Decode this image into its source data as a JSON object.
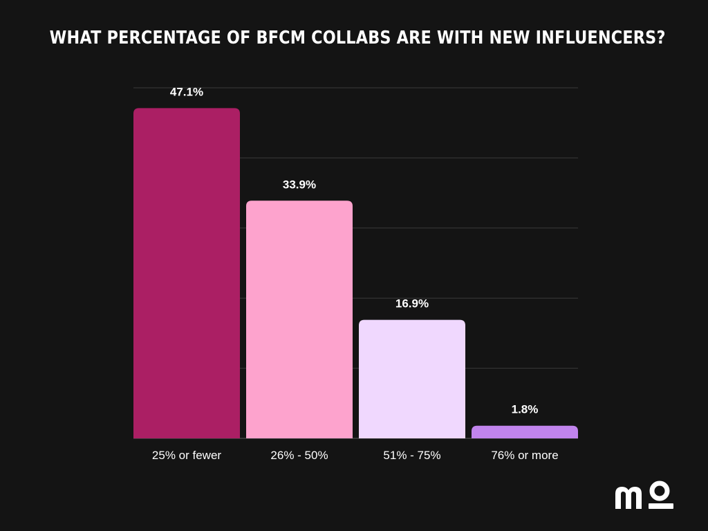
{
  "chart_data": {
    "type": "bar",
    "title": "WHAT PERCENTAGE OF BFCM COLLABS ARE WITH NEW INFLUENCERS?",
    "categories": [
      "25% or fewer",
      "26% - 50%",
      "51% - 75%",
      "76% or more"
    ],
    "values": [
      47.1,
      33.9,
      16.9,
      1.8
    ],
    "data_labels": [
      "47.1%",
      "33.9%",
      "16.9%",
      "1.8%"
    ],
    "xlabel": "",
    "ylabel": "",
    "ylim": [
      0,
      50
    ],
    "grid": true,
    "legend": "none",
    "colors": [
      "#ab1f64",
      "#fda3cd",
      "#f0d8fe",
      "#c184ed"
    ]
  },
  "colors": {
    "background": "#141414",
    "text": "#ffffff",
    "grid": "#3a3a3a"
  },
  "logo": {
    "icon": "mo-logo-icon",
    "text": "mo"
  }
}
